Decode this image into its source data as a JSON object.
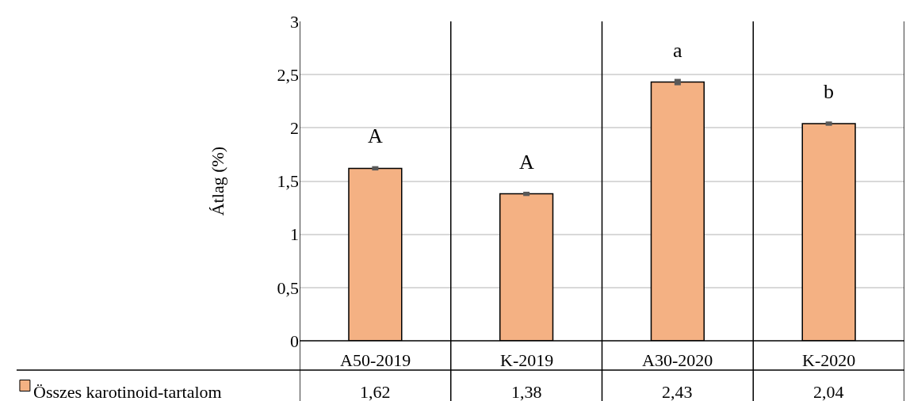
{
  "chart_data": {
    "type": "bar",
    "ylabel": "Átlag (%)",
    "categories": [
      "A50-2019",
      "K-2019",
      "A30-2020",
      "K-2020"
    ],
    "series": [
      {
        "name": "Összes karotinoid-tartalom",
        "color": "#f4b183",
        "values": [
          1.62,
          1.38,
          2.43,
          2.04
        ],
        "value_labels": [
          "1,62",
          "1,38",
          "2,43",
          "2,04"
        ],
        "errors": [
          0.02,
          0.02,
          0.03,
          0.02
        ]
      }
    ],
    "ylim": [
      0,
      3
    ],
    "yticks": [
      0,
      {
        "value": 0.5,
        "label": "0,5"
      },
      1,
      {
        "value": 1.5,
        "label": "1,5"
      },
      2,
      {
        "value": 2.5,
        "label": "2,5"
      },
      3
    ],
    "grid": "y",
    "annotations": [
      "A",
      "A",
      "a",
      "b"
    ]
  }
}
